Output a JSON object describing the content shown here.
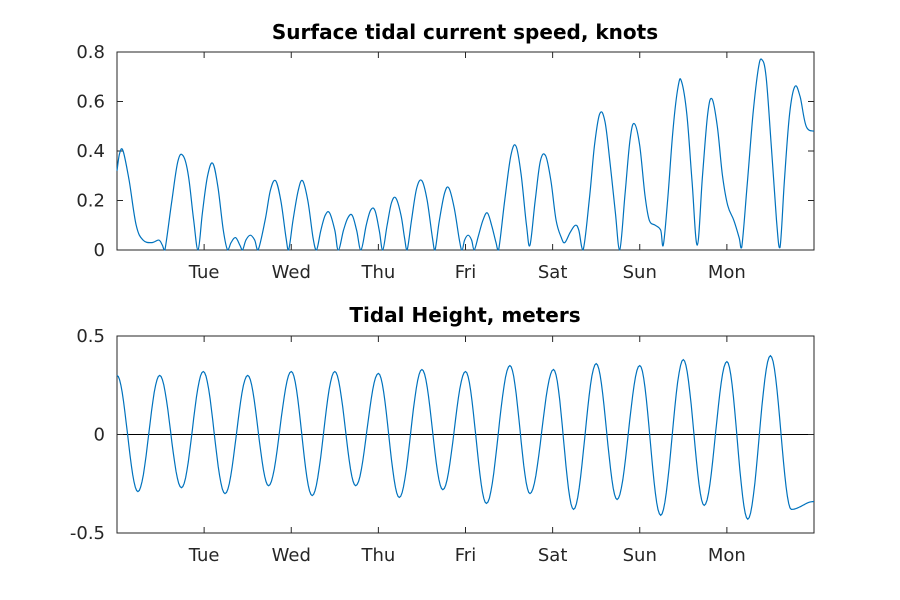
{
  "chart_data": [
    {
      "id": "current",
      "type": "line",
      "title": "Surface tidal current speed, knots",
      "xlabel": "",
      "ylabel": "",
      "xlim": [
        0,
        8
      ],
      "ylim": [
        0,
        0.8
      ],
      "yticks": [
        0,
        0.2,
        0.4,
        0.6,
        0.8
      ],
      "ytick_labels": [
        "0",
        "0.2",
        "0.4",
        "0.6",
        "0.8"
      ],
      "xticks": [
        1,
        2,
        3,
        4,
        5,
        6,
        7
      ],
      "xtick_labels": [
        "Tue",
        "Wed",
        "Thu",
        "Fri",
        "Sat",
        "Sun",
        "Mon"
      ],
      "grid": false,
      "series": [
        {
          "color": "#0072BD",
          "points": [
            [
              0.0,
              0.32
            ],
            [
              0.03,
              0.39
            ],
            [
              0.07,
              0.4
            ],
            [
              0.14,
              0.28
            ],
            [
              0.22,
              0.1
            ],
            [
              0.3,
              0.04
            ],
            [
              0.4,
              0.03
            ],
            [
              0.48,
              0.04
            ],
            [
              0.52,
              0.02
            ],
            [
              0.55,
              0.0
            ],
            [
              0.63,
              0.2
            ],
            [
              0.7,
              0.36
            ],
            [
              0.76,
              0.38
            ],
            [
              0.82,
              0.3
            ],
            [
              0.88,
              0.12
            ],
            [
              0.93,
              0.0
            ],
            [
              0.98,
              0.15
            ],
            [
              1.04,
              0.3
            ],
            [
              1.1,
              0.35
            ],
            [
              1.16,
              0.25
            ],
            [
              1.22,
              0.08
            ],
            [
              1.27,
              0.0
            ],
            [
              1.31,
              0.03
            ],
            [
              1.36,
              0.05
            ],
            [
              1.41,
              0.02
            ],
            [
              1.44,
              0.0
            ],
            [
              1.48,
              0.04
            ],
            [
              1.53,
              0.06
            ],
            [
              1.58,
              0.04
            ],
            [
              1.62,
              0.0
            ],
            [
              1.7,
              0.12
            ],
            [
              1.76,
              0.24
            ],
            [
              1.82,
              0.28
            ],
            [
              1.88,
              0.2
            ],
            [
              1.94,
              0.05
            ],
            [
              1.97,
              0.0
            ],
            [
              2.02,
              0.12
            ],
            [
              2.08,
              0.24
            ],
            [
              2.13,
              0.28
            ],
            [
              2.19,
              0.2
            ],
            [
              2.25,
              0.05
            ],
            [
              2.29,
              0.0
            ],
            [
              2.34,
              0.08
            ],
            [
              2.39,
              0.14
            ],
            [
              2.44,
              0.15
            ],
            [
              2.5,
              0.08
            ],
            [
              2.54,
              0.0
            ],
            [
              2.6,
              0.08
            ],
            [
              2.65,
              0.13
            ],
            [
              2.7,
              0.14
            ],
            [
              2.75,
              0.08
            ],
            [
              2.8,
              0.0
            ],
            [
              2.86,
              0.1
            ],
            [
              2.91,
              0.16
            ],
            [
              2.96,
              0.16
            ],
            [
              3.01,
              0.08
            ],
            [
              3.05,
              0.0
            ],
            [
              3.1,
              0.1
            ],
            [
              3.15,
              0.19
            ],
            [
              3.2,
              0.21
            ],
            [
              3.26,
              0.14
            ],
            [
              3.3,
              0.05
            ],
            [
              3.33,
              0.0
            ],
            [
              3.38,
              0.12
            ],
            [
              3.44,
              0.25
            ],
            [
              3.5,
              0.28
            ],
            [
              3.56,
              0.2
            ],
            [
              3.62,
              0.05
            ],
            [
              3.65,
              0.0
            ],
            [
              3.7,
              0.12
            ],
            [
              3.76,
              0.23
            ],
            [
              3.81,
              0.25
            ],
            [
              3.87,
              0.17
            ],
            [
              3.93,
              0.04
            ],
            [
              3.96,
              0.0
            ],
            [
              3.99,
              0.04
            ],
            [
              4.03,
              0.06
            ],
            [
              4.07,
              0.04
            ],
            [
              4.1,
              0.0
            ],
            [
              4.15,
              0.06
            ],
            [
              4.2,
              0.12
            ],
            [
              4.25,
              0.15
            ],
            [
              4.3,
              0.1
            ],
            [
              4.35,
              0.03
            ],
            [
              4.38,
              0.0
            ],
            [
              4.45,
              0.2
            ],
            [
              4.52,
              0.38
            ],
            [
              4.58,
              0.42
            ],
            [
              4.64,
              0.3
            ],
            [
              4.7,
              0.1
            ],
            [
              4.74,
              0.02
            ],
            [
              4.8,
              0.2
            ],
            [
              4.86,
              0.36
            ],
            [
              4.92,
              0.38
            ],
            [
              4.98,
              0.28
            ],
            [
              5.04,
              0.12
            ],
            [
              5.1,
              0.05
            ],
            [
              5.14,
              0.03
            ],
            [
              5.2,
              0.07
            ],
            [
              5.26,
              0.1
            ],
            [
              5.3,
              0.08
            ],
            [
              5.35,
              0.0
            ],
            [
              5.42,
              0.2
            ],
            [
              5.48,
              0.42
            ],
            [
              5.54,
              0.55
            ],
            [
              5.6,
              0.52
            ],
            [
              5.66,
              0.35
            ],
            [
              5.72,
              0.15
            ],
            [
              5.77,
              0.0
            ],
            [
              5.83,
              0.22
            ],
            [
              5.89,
              0.45
            ],
            [
              5.94,
              0.51
            ],
            [
              6.0,
              0.42
            ],
            [
              6.06,
              0.22
            ],
            [
              6.11,
              0.12
            ],
            [
              6.18,
              0.1
            ],
            [
              6.24,
              0.08
            ],
            [
              6.27,
              0.02
            ],
            [
              6.32,
              0.2
            ],
            [
              6.38,
              0.48
            ],
            [
              6.44,
              0.66
            ],
            [
              6.48,
              0.68
            ],
            [
              6.54,
              0.55
            ],
            [
              6.6,
              0.28
            ],
            [
              6.66,
              0.02
            ],
            [
              6.72,
              0.3
            ],
            [
              6.78,
              0.55
            ],
            [
              6.83,
              0.61
            ],
            [
              6.89,
              0.5
            ],
            [
              6.95,
              0.3
            ],
            [
              7.01,
              0.18
            ],
            [
              7.08,
              0.12
            ],
            [
              7.14,
              0.05
            ],
            [
              7.17,
              0.01
            ],
            [
              7.23,
              0.25
            ],
            [
              7.3,
              0.55
            ],
            [
              7.36,
              0.73
            ],
            [
              7.4,
              0.77
            ],
            [
              7.45,
              0.7
            ],
            [
              7.51,
              0.42
            ],
            [
              7.57,
              0.12
            ],
            [
              7.61,
              0.01
            ],
            [
              7.66,
              0.28
            ],
            [
              7.72,
              0.55
            ],
            [
              7.78,
              0.66
            ],
            [
              7.84,
              0.62
            ],
            [
              7.91,
              0.5
            ],
            [
              8.0,
              0.48
            ]
          ]
        }
      ]
    },
    {
      "id": "height",
      "type": "line",
      "title": "Tidal Height, meters",
      "xlabel": "",
      "ylabel": "",
      "xlim": [
        0,
        8
      ],
      "ylim": [
        -0.5,
        0.5
      ],
      "yticks": [
        -0.5,
        0,
        0.5
      ],
      "ytick_labels": [
        "-0.5",
        "0",
        "0.5"
      ],
      "xticks": [
        1,
        2,
        3,
        4,
        5,
        6,
        7
      ],
      "xtick_labels": [
        "Tue",
        "Wed",
        "Thu",
        "Fri",
        "Sat",
        "Sun",
        "Mon"
      ],
      "grid": false,
      "zero_line": true,
      "series": [
        {
          "color": "#0072BD",
          "phase_peak_x": [
            0.0,
            0.49,
            0.99,
            1.5,
            2.0,
            2.5,
            3.0,
            3.5,
            4.0,
            4.51,
            5.01,
            5.5,
            6.0,
            6.5,
            7.0,
            7.5
          ],
          "peak_values": [
            0.3,
            0.3,
            0.32,
            0.3,
            0.32,
            0.32,
            0.31,
            0.33,
            0.32,
            0.35,
            0.33,
            0.36,
            0.35,
            0.38,
            0.37,
            0.4
          ],
          "trough_x": [
            0.24,
            0.74,
            1.24,
            1.74,
            2.24,
            2.74,
            3.24,
            3.74,
            4.24,
            4.74,
            5.24,
            5.74,
            6.24,
            6.74,
            7.24,
            7.74,
            8.0
          ],
          "trough_values": [
            -0.29,
            -0.27,
            -0.3,
            -0.26,
            -0.31,
            -0.26,
            -0.32,
            -0.28,
            -0.35,
            -0.3,
            -0.38,
            -0.33,
            -0.41,
            -0.36,
            -0.43,
            -0.38,
            -0.34
          ]
        }
      ]
    }
  ]
}
